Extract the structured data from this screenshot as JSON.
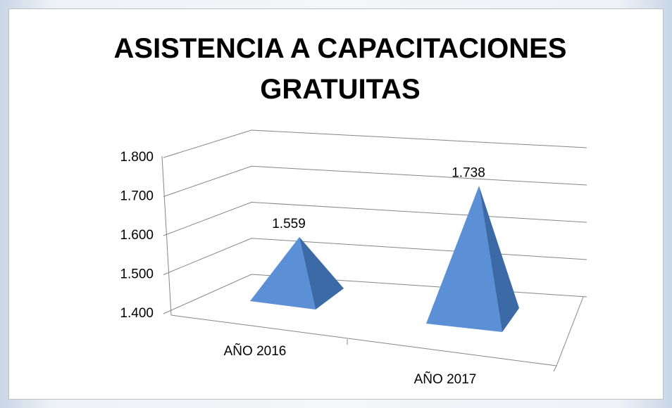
{
  "chart_data": {
    "type": "pyramid3d",
    "title": "ASISTENCIA A CAPACITACIONES GRATUITAS",
    "categories": [
      "AÑO 2016",
      "AÑO 2017"
    ],
    "values": [
      1559,
      1738
    ],
    "value_labels": [
      "1.559",
      "1.738"
    ],
    "color": "#5b8fd6",
    "ylim": [
      1400,
      1800
    ],
    "yticks": [
      {
        "value": 1400,
        "label": "1.400"
      },
      {
        "value": 1500,
        "label": "1.500"
      },
      {
        "value": 1600,
        "label": "1.600"
      },
      {
        "value": 1700,
        "label": "1.700"
      },
      {
        "value": 1800,
        "label": "1.800"
      }
    ],
    "grid": true
  }
}
